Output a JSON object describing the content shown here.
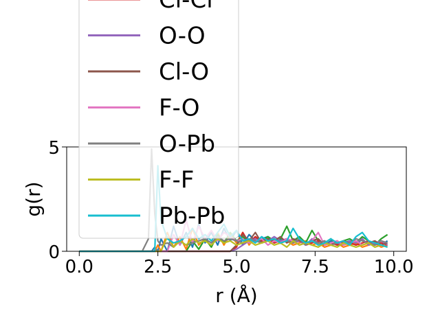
{
  "chart_data": {
    "type": "line",
    "title": "",
    "xlabel": "r (Å)",
    "ylabel": "g(r)",
    "xlim": [
      -0.4,
      10.4
    ],
    "ylim": [
      0,
      5
    ],
    "x_ticks": [
      0.0,
      2.5,
      5.0,
      7.5,
      10.0
    ],
    "x_tick_labels": [
      "0.0",
      "2.5",
      "5.0",
      "7.5",
      "10.0"
    ],
    "y_ticks": [
      0,
      5
    ],
    "y_tick_labels": [
      "0",
      "5"
    ],
    "grid": false,
    "legend_placement": "upper-left",
    "x": [
      0.0,
      0.5,
      1.0,
      1.5,
      2.0,
      2.2,
      2.3,
      2.4,
      2.5,
      2.6,
      2.8,
      3.0,
      3.2,
      3.4,
      3.6,
      3.8,
      4.0,
      4.2,
      4.4,
      4.6,
      4.8,
      5.0,
      5.2,
      5.4,
      5.6,
      5.8,
      6.0,
      6.2,
      6.4,
      6.6,
      6.8,
      7.0,
      7.2,
      7.4,
      7.6,
      7.8,
      8.0,
      8.2,
      8.4,
      8.6,
      8.8,
      9.0,
      9.2,
      9.4,
      9.6,
      9.8
    ],
    "series": [
      {
        "name": "",
        "color": "#1f77b4",
        "values": [
          0,
          0,
          0,
          0,
          0,
          0,
          0,
          0.2,
          0,
          0.6,
          0,
          1.2,
          0.3,
          0.9,
          0.2,
          1.3,
          0.4,
          0.9,
          0.3,
          1.1,
          0.5,
          1.0,
          0.3,
          0.8,
          0.5,
          0.6,
          0.7,
          0.4,
          0.6,
          0.5,
          0.4,
          0.6,
          0.3,
          0.5,
          0.4,
          0.3,
          0.5,
          0.3,
          0.4,
          0.5,
          0.3,
          0.6,
          0.3,
          0.4,
          0.3,
          0.5
        ]
      },
      {
        "name": "",
        "color": "#ff7f0e",
        "values": [
          0,
          0,
          0,
          0,
          0,
          0,
          0,
          0,
          0.3,
          0,
          0.9,
          0.2,
          0.7,
          0.1,
          1.1,
          0.3,
          0.6,
          0.2,
          0.9,
          0.3,
          0.8,
          0.4,
          0.9,
          0.3,
          0.7,
          0.4,
          0.5,
          0.6,
          0.4,
          0.5,
          0.3,
          0.4,
          0.5,
          0.3,
          0.4,
          0.2,
          0.3,
          0.4,
          0.2,
          0.3,
          0.4,
          0.2,
          0.3,
          0.4,
          0.2,
          0.3
        ]
      },
      {
        "name": "",
        "color": "#2ca02c",
        "values": [
          0,
          0,
          0,
          0,
          0,
          0,
          0,
          0,
          0,
          0,
          0,
          0,
          0,
          0,
          0.5,
          0.1,
          0.6,
          0.2,
          0.8,
          0.4,
          0.9,
          0.5,
          0.7,
          0.4,
          0.6,
          0.5,
          0.7,
          0.5,
          0.6,
          1.2,
          0.5,
          0.7,
          0.4,
          1.0,
          0.5,
          0.4,
          0.6,
          0.3,
          0.5,
          0.6,
          0.4,
          0.7,
          0.5,
          0.3,
          0.6,
          0.8
        ]
      },
      {
        "name": "Cl-Cl",
        "color": "#d62728",
        "values": [
          0,
          0,
          0,
          0,
          0,
          0,
          0,
          0,
          0,
          0,
          0,
          0,
          0,
          0,
          0,
          0,
          0,
          0,
          0,
          0,
          0,
          0.2,
          0.9,
          0.4,
          0.7,
          0.5,
          0.6,
          0.4,
          0.5,
          0.6,
          0.4,
          0.5,
          0.3,
          0.4,
          0.5,
          0.3,
          0.4,
          0.3,
          0.5,
          0.4,
          0.3,
          0.4,
          0.5,
          0.3,
          0.4,
          0.3
        ]
      },
      {
        "name": "O-O",
        "color": "#9467bd",
        "values": [
          0,
          0,
          0,
          0,
          0,
          0,
          0,
          0,
          0,
          0,
          0,
          0,
          0,
          0,
          0,
          0,
          0,
          0,
          0,
          0,
          0,
          0.1,
          0.3,
          0.5,
          0.6,
          0.4,
          0.5,
          0.7,
          0.5,
          0.6,
          0.4,
          0.5,
          0.3,
          0.6,
          0.4,
          0.5,
          0.3,
          0.4,
          0.3,
          0.5,
          0.4,
          0.6,
          0.3,
          0.4,
          0.5,
          0.3
        ]
      },
      {
        "name": "Cl-O",
        "color": "#8c564b",
        "values": [
          0,
          0,
          0,
          0,
          0,
          0,
          0,
          0,
          0,
          0,
          0,
          0,
          0,
          0,
          0,
          0,
          0,
          0,
          0,
          0,
          0,
          0.3,
          0.8,
          0.5,
          0.9,
          0.4,
          0.6,
          0.5,
          0.7,
          0.4,
          0.6,
          0.5,
          0.4,
          0.5,
          0.6,
          0.3,
          0.4,
          0.5,
          0.3,
          0.4,
          0.5,
          0.3,
          0.4,
          0.5,
          0.3,
          0.4
        ]
      },
      {
        "name": "F-O",
        "color": "#e377c2",
        "values": [
          0,
          0,
          0,
          0,
          0,
          0,
          0,
          0,
          0,
          0,
          0,
          0.8,
          0.3,
          1.5,
          0.4,
          1.2,
          0.6,
          1.0,
          0.5,
          0.9,
          0.7,
          0.5,
          0.6,
          0.4,
          0.5,
          0.6,
          0.3,
          0.5,
          0.4,
          0.6,
          0.5,
          0.3,
          0.4,
          0.5,
          0.9,
          0.3,
          0.4,
          0.5,
          0.3,
          0.4,
          0.5,
          0.3,
          0.4,
          0.3,
          0.5,
          0.4
        ]
      },
      {
        "name": "O-Pb",
        "color": "#7f7f7f",
        "values": [
          0,
          0,
          0,
          0,
          0,
          0.6,
          4.9,
          1.8,
          0.5,
          0.3,
          0.4,
          0.2,
          0.5,
          0.3,
          0.4,
          0.5,
          0.6,
          0.4,
          0.7,
          0.5,
          0.6,
          0.5,
          0.4,
          0.6,
          0.5,
          0.4,
          0.5,
          0.6,
          0.4,
          0.5,
          0.4,
          0.6,
          0.3,
          0.5,
          0.4,
          0.5,
          0.3,
          0.4,
          0.5,
          0.4,
          0.6,
          0.5,
          0.4,
          0.3,
          0.5,
          0.4
        ]
      },
      {
        "name": "F-F",
        "color": "#bcbd22",
        "values": [
          0,
          0,
          0,
          0,
          0,
          0,
          0,
          0,
          0,
          0,
          0.7,
          0.2,
          0.5,
          0.3,
          0.6,
          0.4,
          0.5,
          0.3,
          0.6,
          0.4,
          0.5,
          0.3,
          0.4,
          0.5,
          0.3,
          0.4,
          0.5,
          0.3,
          0.4,
          0.2,
          0.5,
          0.3,
          0.4,
          0.3,
          0.2,
          0.4,
          0.3,
          0.2,
          0.4,
          0.3,
          0.2,
          0.3,
          0.4,
          0.2,
          0.3,
          0.2
        ]
      },
      {
        "name": "Pb-Pb",
        "color": "#17becf",
        "values": [
          0,
          0,
          0,
          0,
          0,
          0,
          0,
          0,
          4.1,
          1.5,
          0.6,
          0.4,
          0.5,
          0.7,
          1.1,
          0.6,
          0.8,
          0.5,
          0.9,
          1.3,
          0.7,
          1.0,
          0.5,
          0.6,
          0.4,
          0.7,
          0.5,
          0.6,
          0.4,
          0.5,
          1.1,
          0.6,
          0.4,
          0.5,
          0.3,
          0.4,
          0.6,
          0.4,
          0.5,
          0.3,
          0.7,
          0.9,
          0.5,
          0.4,
          0.3,
          0.2
        ]
      }
    ]
  }
}
